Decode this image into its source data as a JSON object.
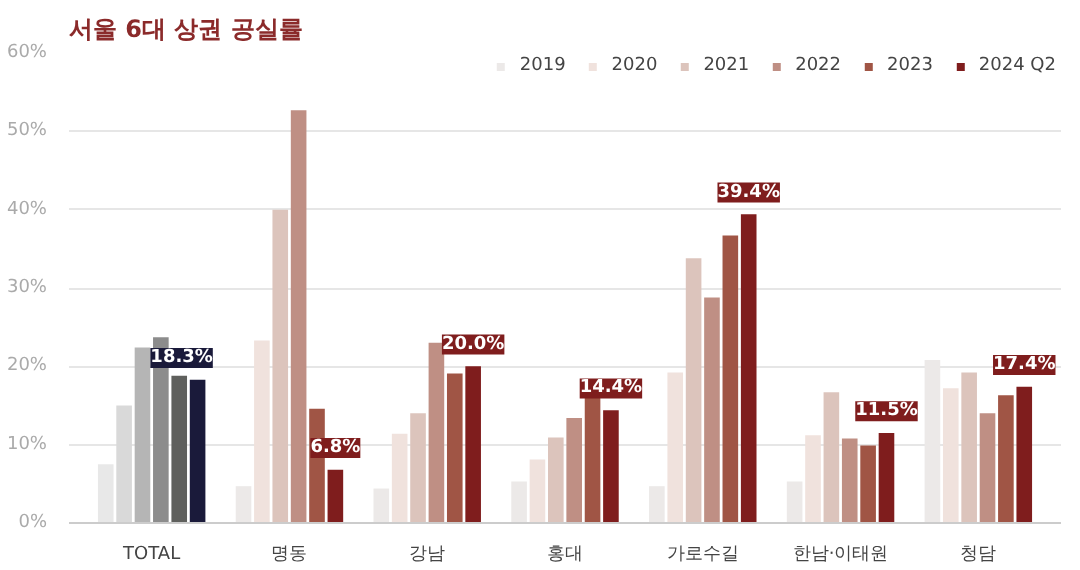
{
  "chart_data": {
    "type": "bar",
    "title": "서울 6대 상권 공실률",
    "categories": [
      "TOTAL",
      "명동",
      "강남",
      "홍대",
      "가로수길",
      "한남·이태원",
      "청담"
    ],
    "series": [
      {
        "name": "2019",
        "color": "#ece9e8",
        "colors": [
          "#e8e8e8",
          "#ece9e8",
          "#ece9e8",
          "#ece9e8",
          "#ece9e8",
          "#ece9e8",
          "#ece9e8"
        ],
        "values": [
          7.5,
          4.7,
          4.4,
          5.3,
          4.7,
          5.3,
          20.8
        ]
      },
      {
        "name": "2020",
        "color": "#f0e2dd",
        "colors": [
          "#d9d9d9",
          "#f0e2dd",
          "#f0e2dd",
          "#f0e2dd",
          "#f0e2dd",
          "#f0e2dd",
          "#f0e2dd"
        ],
        "values": [
          15.0,
          23.3,
          11.4,
          8.1,
          19.2,
          11.2,
          17.2
        ]
      },
      {
        "name": "2021",
        "color": "#dcc4bc",
        "colors": [
          "#b5b5b5",
          "#dcc4bc",
          "#dcc4bc",
          "#dcc4bc",
          "#dcc4bc",
          "#dcc4bc",
          "#dcc4bc"
        ],
        "values": [
          22.4,
          40.0,
          14.0,
          10.9,
          33.8,
          16.7,
          19.2
        ]
      },
      {
        "name": "2022",
        "color": "#bf8f84",
        "colors": [
          "#8c8c8c",
          "#bf8f84",
          "#bf8f84",
          "#bf8f84",
          "#bf8f84",
          "#bf8f84",
          "#bf8f84"
        ],
        "values": [
          23.7,
          52.7,
          23.0,
          13.4,
          28.8,
          10.8,
          14.0
        ]
      },
      {
        "name": "2023",
        "color": "#a05545",
        "colors": [
          "#5f605d",
          "#a05545",
          "#a05545",
          "#a05545",
          "#a05545",
          "#a05545",
          "#a05545"
        ],
        "values": [
          18.8,
          14.6,
          19.1,
          16.0,
          36.7,
          9.9,
          16.3
        ]
      },
      {
        "name": "2024 Q2",
        "color": "#7f1d1d",
        "colors": [
          "#1a1a3a",
          "#7f1d1d",
          "#7f1d1d",
          "#7f1d1d",
          "#7f1d1d",
          "#7f1d1d",
          "#7f1d1d"
        ],
        "values": [
          18.3,
          6.8,
          20.0,
          14.4,
          39.4,
          11.5,
          17.4
        ],
        "value_labels": [
          "18.3%",
          "6.8%",
          "20.0%",
          "14.4%",
          "39.4%",
          "11.5%",
          "17.4%"
        ]
      }
    ],
    "ylim": [
      0,
      60
    ],
    "yticks": [
      {
        "value": 0,
        "label": "0%"
      },
      {
        "value": 10,
        "label": "10%"
      },
      {
        "value": 20,
        "label": "20%"
      },
      {
        "value": 30,
        "label": "30%"
      },
      {
        "value": 40,
        "label": "40%"
      },
      {
        "value": 50,
        "label": "50%"
      },
      {
        "value": 60,
        "label": "60%"
      }
    ],
    "grid": "y",
    "legend": "top right"
  }
}
